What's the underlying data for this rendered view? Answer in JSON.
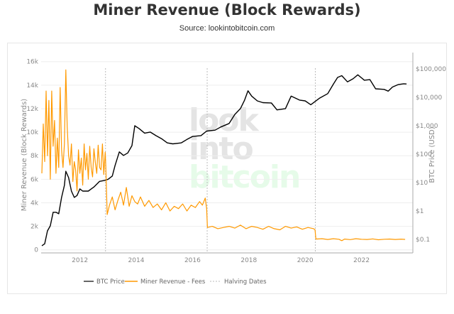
{
  "chart_data": {
    "type": "line",
    "title": "Miner Revenue (Block Rewards)",
    "subtitle": "Source: lookintobitcoin.com",
    "ylabel": "Miner Revenue (Block Rewards)",
    "y2label": "BTC Price (USD)",
    "xlim": [
      2010.65,
      2023.9
    ],
    "ylim": [
      0,
      16000
    ],
    "y2lim": [
      0.05,
      150000
    ],
    "y2scale": "log",
    "grid": true,
    "legend_position": "bottom",
    "x_ticks": [
      "2012",
      "2014",
      "2016",
      "2018",
      "2020",
      "2022"
    ],
    "x_tick_values": [
      2012,
      2014,
      2016,
      2018,
      2020,
      2022
    ],
    "y_ticks": [
      "0",
      "2k",
      "4k",
      "6k",
      "8k",
      "10k",
      "12k",
      "14k",
      "16k"
    ],
    "y_tick_values": [
      0,
      2000,
      4000,
      6000,
      8000,
      10000,
      12000,
      14000,
      16000
    ],
    "y2_ticks": [
      "$0.1",
      "$1",
      "$10",
      "$100",
      "$1,000",
      "$10,000",
      "$100,000"
    ],
    "y2_tick_values": [
      0.1,
      1,
      10,
      100,
      1000,
      10000,
      100000
    ],
    "watermark": [
      "look",
      "into",
      "bitcoin"
    ],
    "halving_dates": [
      2012.91,
      2016.52,
      2020.36
    ],
    "series": [
      {
        "name": "BTC Price",
        "color": "#000000",
        "axis": "right",
        "x": [
          2010.65,
          2010.75,
          2010.85,
          2010.95,
          2011.05,
          2011.15,
          2011.25,
          2011.35,
          2011.45,
          2011.5,
          2011.6,
          2011.7,
          2011.8,
          2011.9,
          2012.0,
          2012.1,
          2012.3,
          2012.5,
          2012.7,
          2012.9,
          2013.0,
          2013.15,
          2013.25,
          2013.4,
          2013.55,
          2013.7,
          2013.85,
          2013.95,
          2014.1,
          2014.3,
          2014.5,
          2014.7,
          2014.9,
          2015.1,
          2015.3,
          2015.6,
          2015.8,
          2016.0,
          2016.3,
          2016.5,
          2016.8,
          2017.0,
          2017.3,
          2017.5,
          2017.7,
          2017.85,
          2017.97,
          2018.1,
          2018.3,
          2018.5,
          2018.8,
          2019.0,
          2019.3,
          2019.5,
          2019.8,
          2020.0,
          2020.2,
          2020.5,
          2020.8,
          2021.0,
          2021.15,
          2021.3,
          2021.5,
          2021.7,
          2021.87,
          2022.1,
          2022.3,
          2022.5,
          2022.8,
          2022.95,
          2023.1,
          2023.3,
          2023.5,
          2023.6
        ],
        "values": [
          0.06,
          0.07,
          0.2,
          0.3,
          0.9,
          0.9,
          0.8,
          3,
          8,
          25,
          15,
          5,
          3,
          3.5,
          6,
          5,
          5,
          7,
          11,
          12,
          13,
          17,
          40,
          120,
          90,
          110,
          200,
          1000,
          800,
          550,
          600,
          450,
          350,
          250,
          230,
          250,
          330,
          420,
          450,
          650,
          700,
          900,
          1200,
          2500,
          4000,
          8000,
          17000,
          11000,
          7500,
          6500,
          6300,
          3600,
          4000,
          11000,
          8000,
          7500,
          5500,
          9200,
          13500,
          29000,
          50000,
          58000,
          35000,
          45000,
          62000,
          40000,
          42000,
          20000,
          19000,
          16500,
          23000,
          28000,
          30000,
          29500
        ]
      },
      {
        "name": "Miner Revenue - Fees",
        "color": "#ff9900",
        "axis": "left",
        "x": [
          2010.65,
          2010.7,
          2010.75,
          2010.8,
          2010.85,
          2010.9,
          2010.95,
          2011.0,
          2011.05,
          2011.1,
          2011.15,
          2011.2,
          2011.25,
          2011.3,
          2011.35,
          2011.4,
          2011.45,
          2011.5,
          2011.55,
          2011.6,
          2011.65,
          2011.7,
          2011.75,
          2011.8,
          2011.85,
          2011.9,
          2011.95,
          2012.0,
          2012.05,
          2012.1,
          2012.15,
          2012.2,
          2012.25,
          2012.3,
          2012.35,
          2012.4,
          2012.45,
          2012.5,
          2012.55,
          2012.6,
          2012.65,
          2012.7,
          2012.75,
          2012.8,
          2012.85,
          2012.9,
          2012.92,
          2012.97,
          2013.05,
          2013.15,
          2013.25,
          2013.35,
          2013.45,
          2013.55,
          2013.65,
          2013.75,
          2013.85,
          2013.95,
          2014.05,
          2014.15,
          2014.3,
          2014.45,
          2014.6,
          2014.75,
          2014.9,
          2015.05,
          2015.2,
          2015.35,
          2015.5,
          2015.65,
          2015.8,
          2015.95,
          2016.1,
          2016.25,
          2016.35,
          2016.45,
          2016.5,
          2016.53,
          2016.7,
          2016.9,
          2017.1,
          2017.3,
          2017.5,
          2017.7,
          2017.9,
          2018.1,
          2018.3,
          2018.5,
          2018.7,
          2018.9,
          2019.1,
          2019.3,
          2019.5,
          2019.7,
          2019.9,
          2020.1,
          2020.3,
          2020.35,
          2020.38,
          2020.6,
          2020.8,
          2021.0,
          2021.2,
          2021.3,
          2021.4,
          2021.6,
          2021.8,
          2022.0,
          2022.2,
          2022.4,
          2022.6,
          2022.8,
          2023.0,
          2023.2,
          2023.4,
          2023.55
        ],
        "values": [
          6500,
          10700,
          7500,
          13500,
          8000,
          12700,
          6000,
          13500,
          8800,
          11000,
          6500,
          9500,
          7000,
          13800,
          8500,
          7000,
          9000,
          15300,
          10500,
          8000,
          7200,
          9000,
          5800,
          7500,
          6800,
          5000,
          8500,
          6500,
          7800,
          5500,
          9000,
          6800,
          8200,
          6000,
          8800,
          7000,
          6200,
          8600,
          7400,
          6500,
          8900,
          7000,
          6800,
          9000,
          6400,
          8300,
          7200,
          3000,
          3800,
          4500,
          3400,
          4200,
          4900,
          3800,
          5300,
          3700,
          4600,
          4100,
          3900,
          4500,
          3700,
          4200,
          3600,
          3900,
          3400,
          4000,
          3300,
          3700,
          3500,
          3900,
          3300,
          3800,
          3600,
          4100,
          3800,
          4400,
          3500,
          1900,
          2000,
          1800,
          1900,
          2000,
          1850,
          2100,
          1800,
          2000,
          1900,
          1750,
          2000,
          1800,
          1700,
          2000,
          1850,
          1950,
          1750,
          1900,
          1800,
          1700,
          920,
          950,
          880,
          950,
          900,
          780,
          920,
          870,
          950,
          900,
          880,
          930,
          860,
          900,
          920,
          880,
          910,
          890
        ]
      }
    ]
  }
}
